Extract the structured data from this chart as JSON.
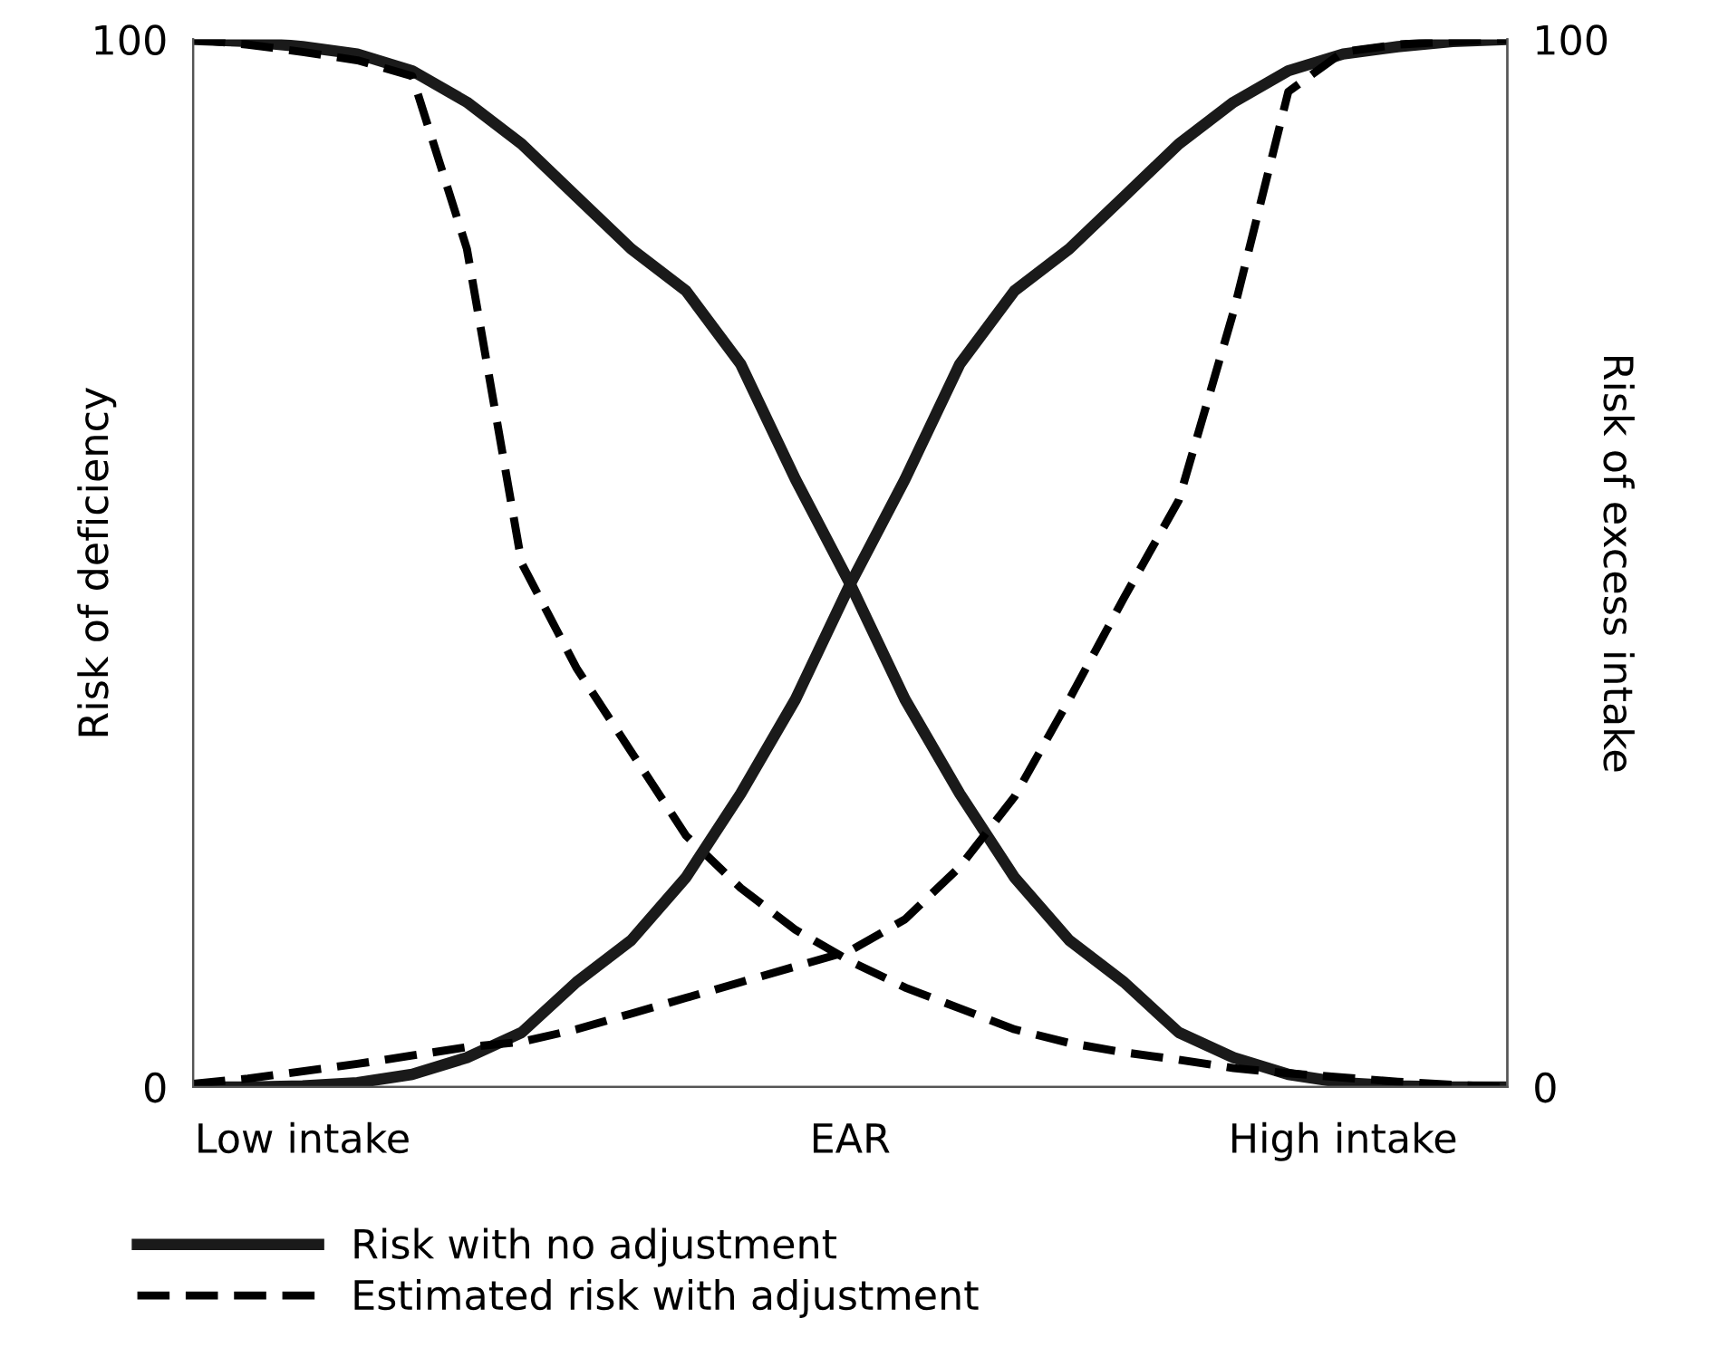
{
  "chart_data": {
    "type": "line",
    "ylabel": "Risk of deficiency",
    "y2label": "Risk of excess intake",
    "categories": [
      null,
      null,
      "Low intake",
      null,
      null,
      null,
      null,
      null,
      null,
      null,
      null,
      null,
      "EAR",
      null,
      null,
      null,
      null,
      null,
      null,
      null,
      null,
      "High intake",
      null,
      null,
      null
    ],
    "ylim": [
      0,
      100
    ],
    "yticks": [
      0,
      100
    ],
    "y2lim": [
      0,
      100
    ],
    "y2ticks": [
      0,
      100
    ],
    "legend": "bottom",
    "marker": "none",
    "series": [
      {
        "name": "Risk with no adjustment",
        "color": "#1a1a1a",
        "line_style": "solid",
        "values": [
          100,
          99.8,
          99.3,
          98.6,
          97,
          94,
          90,
          85,
          80,
          76,
          69,
          58,
          48,
          37,
          28,
          20,
          14,
          10,
          5.2,
          2.8,
          1.2,
          0.4,
          0.1,
          0,
          0
        ]
      },
      {
        "color": "#1a1a1a",
        "line_style": "solid",
        "axis": "y2",
        "values": [
          0,
          0,
          0.1,
          0.4,
          1.2,
          2.8,
          5.2,
          10,
          14,
          20,
          28,
          37,
          48,
          58,
          69,
          76,
          80,
          85,
          90,
          94,
          97,
          98.6,
          99.3,
          99.8,
          100
        ]
      },
      {
        "name": "Estimated risk with adjustment",
        "color": "#000000",
        "line_style": "dashed",
        "values": [
          100,
          99.5,
          98.8,
          98,
          96.5,
          80,
          50,
          40,
          32,
          24,
          19,
          15,
          12,
          9.5,
          7.5,
          5.5,
          4.2,
          3.3,
          2.6,
          1.8,
          1.3,
          0.9,
          0.5,
          0.2,
          0
        ]
      },
      {
        "color": "#000000",
        "line_style": "dashed",
        "axis": "y2",
        "values": [
          0.3,
          0.8,
          1.5,
          2.2,
          3,
          3.8,
          4.3,
          5.5,
          7,
          8.5,
          10,
          11.5,
          13,
          16,
          21,
          27.7,
          37,
          46.7,
          56,
          74,
          95,
          98.8,
          99.5,
          99.8,
          100
        ]
      }
    ]
  }
}
